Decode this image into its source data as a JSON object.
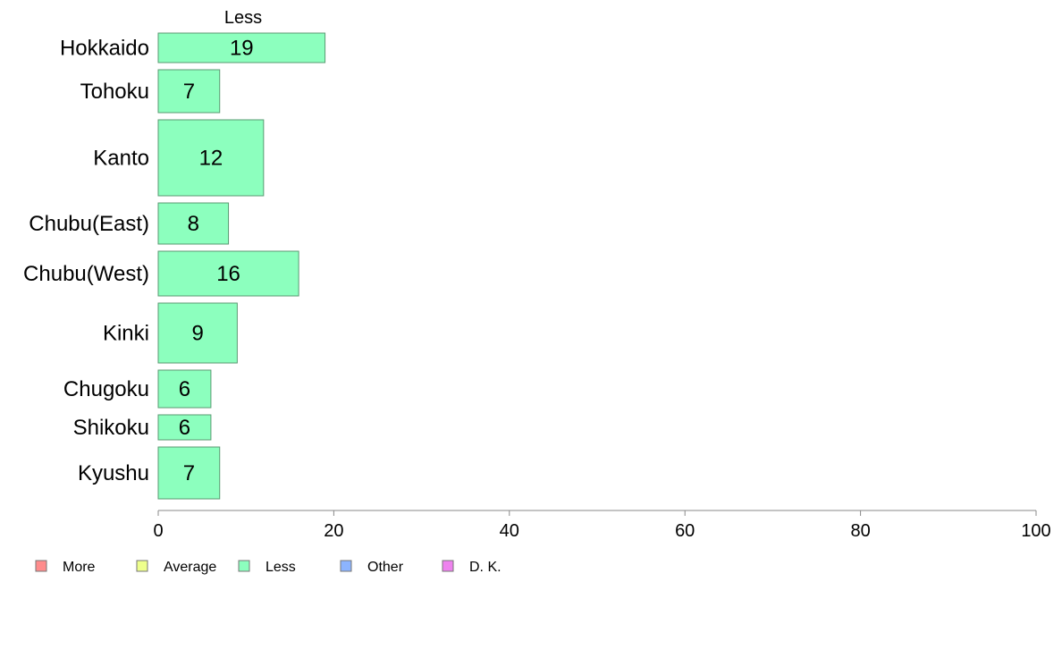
{
  "chart_data": {
    "type": "bar",
    "orientation": "horizontal",
    "stacked": true,
    "variable_width": true,
    "series_title": "Less",
    "categories": [
      "Hokkaido",
      "Tohoku",
      "Kanto",
      "Chubu(East)",
      "Chubu(West)",
      "Kinki",
      "Chugoku",
      "Shikoku",
      "Kyushu"
    ],
    "series": [
      {
        "name": "Less",
        "values": [
          19,
          7,
          12,
          8,
          16,
          9,
          6,
          6,
          7
        ]
      }
    ],
    "data_labels": [
      "19",
      "7",
      "12",
      "8",
      "16",
      "9",
      "6",
      "6",
      "7"
    ],
    "xlim": [
      0,
      100
    ],
    "xticks": [
      0,
      20,
      40,
      60,
      80,
      100
    ],
    "grid": false,
    "legend": {
      "placement": "bottom-left",
      "entries": [
        {
          "label": "More",
          "color": "#ff8c8c"
        },
        {
          "label": "Average",
          "color": "#eeff8c"
        },
        {
          "label": "Less",
          "color": "#8cffbe"
        },
        {
          "label": "Other",
          "color": "#8cb4ff"
        },
        {
          "label": "D. K.",
          "color": "#ee82ee"
        }
      ]
    },
    "colors": {
      "bar_fill": "#8cffbe",
      "bar_stroke": "#5a9a72",
      "axis": "#888888"
    }
  }
}
